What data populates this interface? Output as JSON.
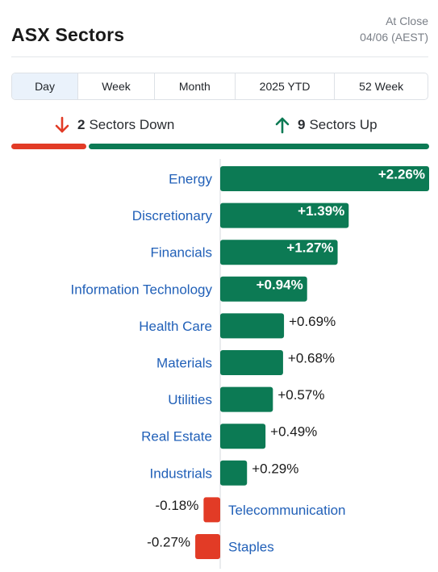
{
  "header": {
    "title": "ASX Sectors",
    "close_label": "At Close",
    "close_date": "04/06 (AEST)"
  },
  "tabs": [
    {
      "label": "Day",
      "active": true
    },
    {
      "label": "Week",
      "active": false
    },
    {
      "label": "Month",
      "active": false
    },
    {
      "label": "2025 YTD",
      "active": false
    },
    {
      "label": "52 Week",
      "active": false
    }
  ],
  "summary": {
    "down_count": "2",
    "down_label": "Sectors Down",
    "up_count": "9",
    "up_label": "Sectors Up"
  },
  "colors": {
    "positive": "#0c7a54",
    "negative": "#e23b26",
    "label": "#2160b8"
  },
  "chart_data": {
    "type": "bar",
    "orientation": "horizontal",
    "categories": [
      "Energy",
      "Discretionary",
      "Financials",
      "Information Technology",
      "Health Care",
      "Materials",
      "Utilities",
      "Real Estate",
      "Industrials",
      "Telecommunication",
      "Staples"
    ],
    "values": [
      2.26,
      1.39,
      1.27,
      0.94,
      0.69,
      0.68,
      0.57,
      0.49,
      0.29,
      -0.18,
      -0.27
    ],
    "value_labels": [
      "+2.26%",
      "+1.39%",
      "+1.27%",
      "+0.94%",
      "+0.69%",
      "+0.68%",
      "+0.57%",
      "+0.49%",
      "+0.29%",
      "-0.18%",
      "-0.27%"
    ],
    "unit": "%"
  }
}
